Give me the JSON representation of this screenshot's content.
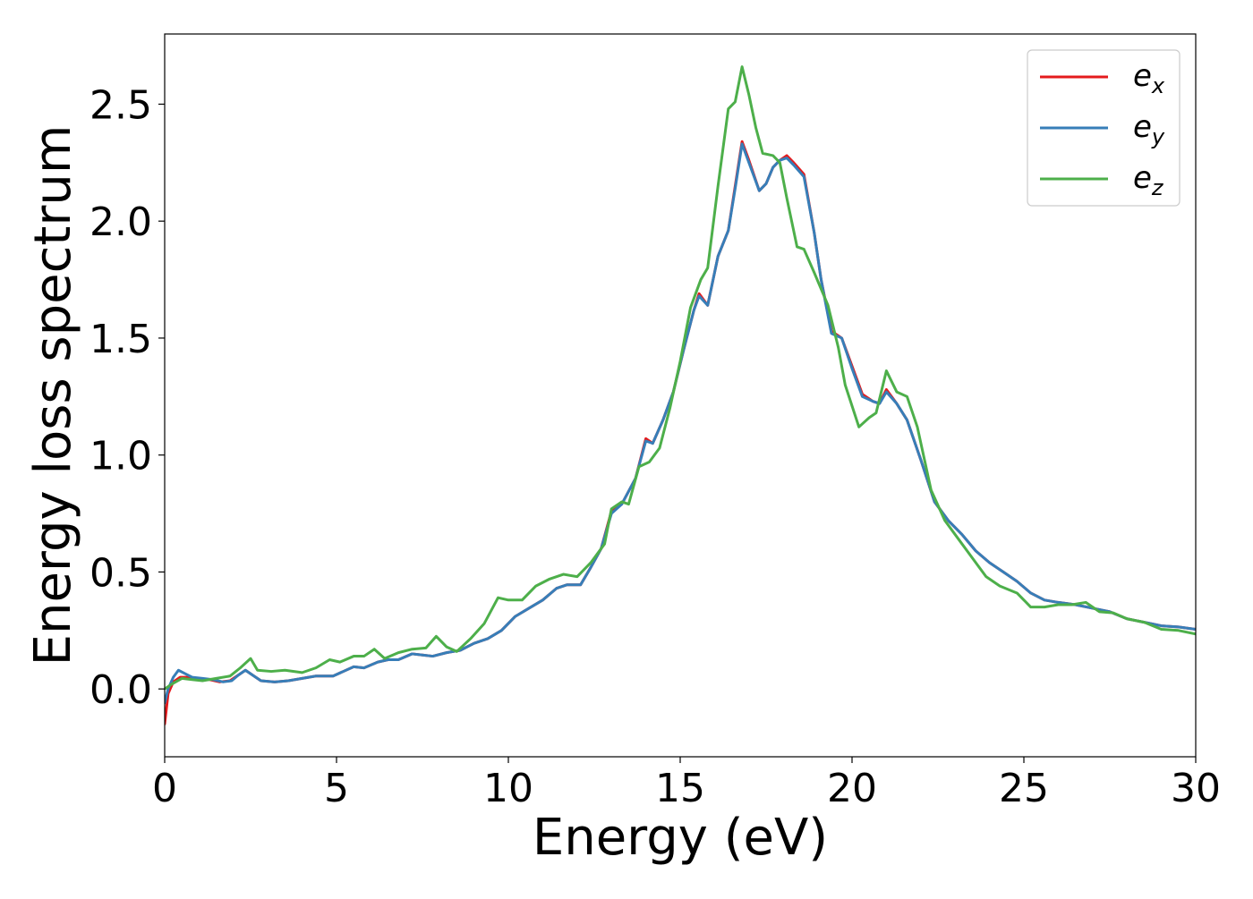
{
  "chart_data": {
    "type": "line",
    "title": "",
    "xlabel": "Energy (eV)",
    "ylabel": "Energy loss spectrum",
    "xlim": [
      0,
      30
    ],
    "ylim": [
      -0.29,
      2.8
    ],
    "xticks": [
      0,
      5,
      10,
      15,
      20,
      25,
      30
    ],
    "yticks": [
      0.0,
      0.5,
      1.0,
      1.5,
      2.0,
      2.5
    ],
    "xtick_labels": [
      "0",
      "5",
      "10",
      "15",
      "20",
      "25",
      "30"
    ],
    "ytick_labels": [
      "0.0",
      "0.5",
      "1.0",
      "1.5",
      "2.0",
      "2.5"
    ],
    "grid": false,
    "legend": {
      "placement": "top-right"
    },
    "series": [
      {
        "name": "e_x",
        "label_base": "e",
        "label_sub": "x",
        "color": "#e41a1c",
        "points": [
          [
            0,
            -0.15
          ],
          [
            0.1,
            -0.02
          ],
          [
            0.25,
            0.03
          ],
          [
            0.45,
            0.05
          ],
          [
            0.7,
            0.05
          ],
          [
            1.0,
            0.045
          ],
          [
            1.3,
            0.04
          ],
          [
            1.6,
            0.03
          ],
          [
            1.9,
            0.035
          ],
          [
            2.15,
            0.06
          ],
          [
            2.35,
            0.08
          ],
          [
            2.55,
            0.06
          ],
          [
            2.8,
            0.035
          ],
          [
            3.2,
            0.03
          ],
          [
            3.6,
            0.035
          ],
          [
            4.0,
            0.045
          ],
          [
            4.4,
            0.055
          ],
          [
            4.9,
            0.055
          ],
          [
            5.2,
            0.075
          ],
          [
            5.5,
            0.095
          ],
          [
            5.8,
            0.09
          ],
          [
            6.2,
            0.115
          ],
          [
            6.5,
            0.125
          ],
          [
            6.8,
            0.125
          ],
          [
            7.2,
            0.15
          ],
          [
            7.5,
            0.145
          ],
          [
            7.8,
            0.14
          ],
          [
            8.2,
            0.155
          ],
          [
            8.6,
            0.165
          ],
          [
            9.0,
            0.195
          ],
          [
            9.4,
            0.215
          ],
          [
            9.8,
            0.25
          ],
          [
            10.2,
            0.31
          ],
          [
            10.6,
            0.345
          ],
          [
            11.0,
            0.38
          ],
          [
            11.4,
            0.43
          ],
          [
            11.7,
            0.445
          ],
          [
            12.1,
            0.445
          ],
          [
            12.4,
            0.52
          ],
          [
            12.7,
            0.6
          ],
          [
            13.0,
            0.76
          ],
          [
            13.3,
            0.79
          ],
          [
            13.7,
            0.9
          ],
          [
            14.0,
            1.07
          ],
          [
            14.2,
            1.05
          ],
          [
            14.5,
            1.15
          ],
          [
            14.8,
            1.27
          ],
          [
            15.1,
            1.45
          ],
          [
            15.4,
            1.62
          ],
          [
            15.55,
            1.69
          ],
          [
            15.8,
            1.64
          ],
          [
            16.1,
            1.85
          ],
          [
            16.4,
            1.96
          ],
          [
            16.6,
            2.15
          ],
          [
            16.8,
            2.34
          ],
          [
            17.0,
            2.26
          ],
          [
            17.3,
            2.13
          ],
          [
            17.5,
            2.16
          ],
          [
            17.7,
            2.23
          ],
          [
            17.9,
            2.26
          ],
          [
            18.1,
            2.28
          ],
          [
            18.3,
            2.25
          ],
          [
            18.6,
            2.2
          ],
          [
            18.9,
            1.95
          ],
          [
            19.1,
            1.75
          ],
          [
            19.4,
            1.53
          ],
          [
            19.7,
            1.5
          ],
          [
            20.0,
            1.38
          ],
          [
            20.3,
            1.26
          ],
          [
            20.6,
            1.23
          ],
          [
            20.8,
            1.22
          ],
          [
            21.0,
            1.28
          ],
          [
            21.3,
            1.22
          ],
          [
            21.6,
            1.15
          ],
          [
            22.0,
            0.98
          ],
          [
            22.4,
            0.8
          ],
          [
            22.8,
            0.72
          ],
          [
            23.2,
            0.66
          ],
          [
            23.6,
            0.59
          ],
          [
            24.0,
            0.54
          ],
          [
            24.4,
            0.5
          ],
          [
            24.8,
            0.46
          ],
          [
            25.2,
            0.41
          ],
          [
            25.6,
            0.38
          ],
          [
            26.0,
            0.37
          ],
          [
            26.5,
            0.36
          ],
          [
            27.0,
            0.345
          ],
          [
            27.5,
            0.33
          ],
          [
            28.0,
            0.3
          ],
          [
            28.5,
            0.285
          ],
          [
            29.0,
            0.27
          ],
          [
            29.5,
            0.265
          ],
          [
            30,
            0.255
          ]
        ]
      },
      {
        "name": "e_y",
        "label_base": "e",
        "label_sub": "y",
        "color": "#377eb8",
        "points": [
          [
            0,
            -0.06
          ],
          [
            0.1,
            0.0
          ],
          [
            0.25,
            0.05
          ],
          [
            0.4,
            0.08
          ],
          [
            0.6,
            0.065
          ],
          [
            0.8,
            0.05
          ],
          [
            1.1,
            0.045
          ],
          [
            1.4,
            0.04
          ],
          [
            1.7,
            0.03
          ],
          [
            1.95,
            0.035
          ],
          [
            2.15,
            0.06
          ],
          [
            2.35,
            0.08
          ],
          [
            2.55,
            0.06
          ],
          [
            2.8,
            0.035
          ],
          [
            3.2,
            0.03
          ],
          [
            3.6,
            0.035
          ],
          [
            4.0,
            0.045
          ],
          [
            4.4,
            0.055
          ],
          [
            4.9,
            0.055
          ],
          [
            5.2,
            0.075
          ],
          [
            5.5,
            0.095
          ],
          [
            5.8,
            0.09
          ],
          [
            6.2,
            0.115
          ],
          [
            6.5,
            0.125
          ],
          [
            6.8,
            0.125
          ],
          [
            7.2,
            0.15
          ],
          [
            7.5,
            0.145
          ],
          [
            7.8,
            0.14
          ],
          [
            8.2,
            0.155
          ],
          [
            8.6,
            0.165
          ],
          [
            9.0,
            0.195
          ],
          [
            9.4,
            0.215
          ],
          [
            9.8,
            0.25
          ],
          [
            10.2,
            0.31
          ],
          [
            10.6,
            0.345
          ],
          [
            11.0,
            0.38
          ],
          [
            11.4,
            0.43
          ],
          [
            11.7,
            0.445
          ],
          [
            12.1,
            0.445
          ],
          [
            12.4,
            0.52
          ],
          [
            12.7,
            0.6
          ],
          [
            13.0,
            0.75
          ],
          [
            13.3,
            0.79
          ],
          [
            13.7,
            0.9
          ],
          [
            14.0,
            1.06
          ],
          [
            14.2,
            1.05
          ],
          [
            14.5,
            1.15
          ],
          [
            14.8,
            1.27
          ],
          [
            15.1,
            1.45
          ],
          [
            15.4,
            1.62
          ],
          [
            15.55,
            1.68
          ],
          [
            15.8,
            1.64
          ],
          [
            16.1,
            1.85
          ],
          [
            16.4,
            1.96
          ],
          [
            16.6,
            2.14
          ],
          [
            16.8,
            2.33
          ],
          [
            17.0,
            2.25
          ],
          [
            17.3,
            2.13
          ],
          [
            17.5,
            2.16
          ],
          [
            17.7,
            2.23
          ],
          [
            17.9,
            2.26
          ],
          [
            18.1,
            2.27
          ],
          [
            18.3,
            2.24
          ],
          [
            18.6,
            2.19
          ],
          [
            18.9,
            1.95
          ],
          [
            19.1,
            1.75
          ],
          [
            19.4,
            1.52
          ],
          [
            19.7,
            1.5
          ],
          [
            20.0,
            1.37
          ],
          [
            20.3,
            1.25
          ],
          [
            20.6,
            1.23
          ],
          [
            20.8,
            1.22
          ],
          [
            21.0,
            1.27
          ],
          [
            21.3,
            1.22
          ],
          [
            21.6,
            1.15
          ],
          [
            22.0,
            0.98
          ],
          [
            22.4,
            0.8
          ],
          [
            22.8,
            0.72
          ],
          [
            23.2,
            0.66
          ],
          [
            23.6,
            0.59
          ],
          [
            24.0,
            0.54
          ],
          [
            24.4,
            0.5
          ],
          [
            24.8,
            0.46
          ],
          [
            25.2,
            0.41
          ],
          [
            25.6,
            0.38
          ],
          [
            26.0,
            0.37
          ],
          [
            26.5,
            0.36
          ],
          [
            27.0,
            0.345
          ],
          [
            27.5,
            0.33
          ],
          [
            28.0,
            0.3
          ],
          [
            28.5,
            0.285
          ],
          [
            29.0,
            0.27
          ],
          [
            29.5,
            0.265
          ],
          [
            30,
            0.255
          ]
        ]
      },
      {
        "name": "e_z",
        "label_base": "e",
        "label_sub": "z",
        "color": "#4daf4a",
        "points": [
          [
            0,
            0.0
          ],
          [
            0.2,
            0.02
          ],
          [
            0.5,
            0.045
          ],
          [
            0.8,
            0.04
          ],
          [
            1.1,
            0.035
          ],
          [
            1.5,
            0.045
          ],
          [
            1.9,
            0.055
          ],
          [
            2.2,
            0.09
          ],
          [
            2.5,
            0.13
          ],
          [
            2.7,
            0.08
          ],
          [
            3.1,
            0.075
          ],
          [
            3.5,
            0.08
          ],
          [
            4.0,
            0.07
          ],
          [
            4.4,
            0.09
          ],
          [
            4.8,
            0.125
          ],
          [
            5.1,
            0.115
          ],
          [
            5.5,
            0.14
          ],
          [
            5.8,
            0.14
          ],
          [
            6.1,
            0.17
          ],
          [
            6.4,
            0.13
          ],
          [
            6.8,
            0.155
          ],
          [
            7.2,
            0.17
          ],
          [
            7.6,
            0.175
          ],
          [
            7.9,
            0.225
          ],
          [
            8.2,
            0.18
          ],
          [
            8.5,
            0.16
          ],
          [
            8.9,
            0.215
          ],
          [
            9.3,
            0.28
          ],
          [
            9.7,
            0.39
          ],
          [
            10.0,
            0.38
          ],
          [
            10.4,
            0.38
          ],
          [
            10.8,
            0.44
          ],
          [
            11.2,
            0.47
          ],
          [
            11.6,
            0.49
          ],
          [
            12.0,
            0.48
          ],
          [
            12.4,
            0.54
          ],
          [
            12.8,
            0.62
          ],
          [
            13.0,
            0.77
          ],
          [
            13.3,
            0.8
          ],
          [
            13.5,
            0.79
          ],
          [
            13.8,
            0.95
          ],
          [
            14.1,
            0.97
          ],
          [
            14.4,
            1.03
          ],
          [
            14.7,
            1.2
          ],
          [
            15.0,
            1.4
          ],
          [
            15.3,
            1.63
          ],
          [
            15.6,
            1.75
          ],
          [
            15.8,
            1.8
          ],
          [
            16.1,
            2.15
          ],
          [
            16.4,
            2.48
          ],
          [
            16.6,
            2.51
          ],
          [
            16.8,
            2.66
          ],
          [
            17.0,
            2.54
          ],
          [
            17.2,
            2.4
          ],
          [
            17.4,
            2.29
          ],
          [
            17.7,
            2.28
          ],
          [
            17.9,
            2.25
          ],
          [
            18.1,
            2.1
          ],
          [
            18.4,
            1.89
          ],
          [
            18.6,
            1.88
          ],
          [
            18.9,
            1.78
          ],
          [
            19.3,
            1.64
          ],
          [
            19.6,
            1.46
          ],
          [
            19.8,
            1.3
          ],
          [
            20.2,
            1.12
          ],
          [
            20.5,
            1.16
          ],
          [
            20.7,
            1.18
          ],
          [
            20.9,
            1.3
          ],
          [
            21.0,
            1.36
          ],
          [
            21.3,
            1.27
          ],
          [
            21.6,
            1.25
          ],
          [
            21.9,
            1.12
          ],
          [
            22.3,
            0.85
          ],
          [
            22.7,
            0.72
          ],
          [
            23.1,
            0.64
          ],
          [
            23.5,
            0.56
          ],
          [
            23.9,
            0.48
          ],
          [
            24.3,
            0.44
          ],
          [
            24.8,
            0.41
          ],
          [
            25.2,
            0.35
          ],
          [
            25.6,
            0.35
          ],
          [
            26.0,
            0.36
          ],
          [
            26.4,
            0.36
          ],
          [
            26.8,
            0.37
          ],
          [
            27.2,
            0.33
          ],
          [
            27.6,
            0.325
          ],
          [
            28.0,
            0.3
          ],
          [
            28.5,
            0.285
          ],
          [
            29.0,
            0.255
          ],
          [
            29.5,
            0.25
          ],
          [
            30,
            0.235
          ]
        ]
      }
    ]
  }
}
